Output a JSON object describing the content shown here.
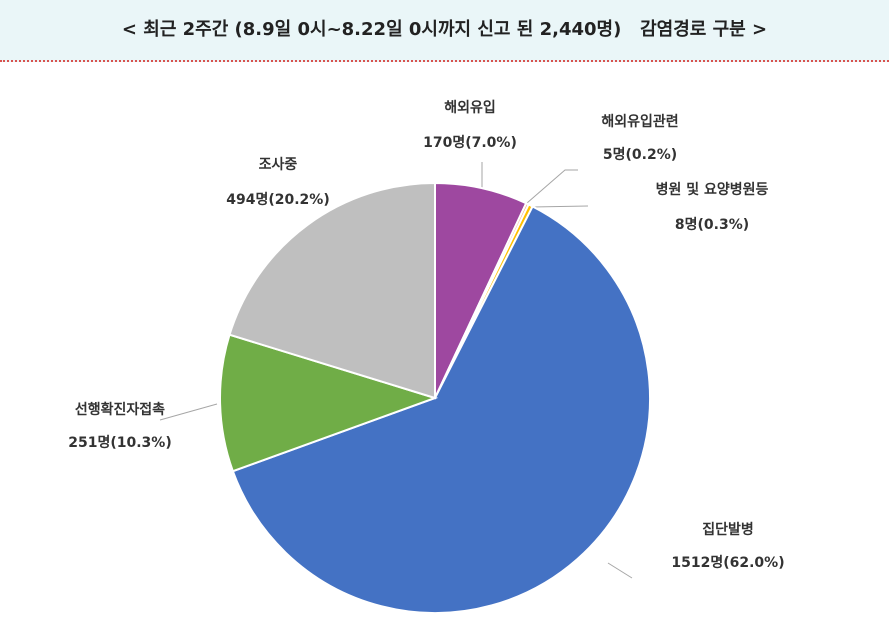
{
  "chart_data": {
    "type": "pie",
    "title": "< 최근 2주간 (8.9일 0시~8.22일 0시까지 신고 된 2,440명)   감염경로 구분 >",
    "categories": [
      "해외유입",
      "해외유입관련",
      "병원 및 요양병원등",
      "집단발병",
      "선행확진자접촉",
      "조사중"
    ],
    "values": [
      170,
      5,
      8,
      1512,
      251,
      494
    ],
    "value_labels": [
      "170명(7.0%)",
      "5명(0.2%)",
      "8명(0.3%)",
      "1512명(62.0%)",
      "251명(10.3%)",
      "494명(20.2%)"
    ],
    "colors": [
      "#9e48a0",
      "#f4b183",
      "#ffc000",
      "#4472c4",
      "#70ad47",
      "#bfbfbf"
    ]
  }
}
